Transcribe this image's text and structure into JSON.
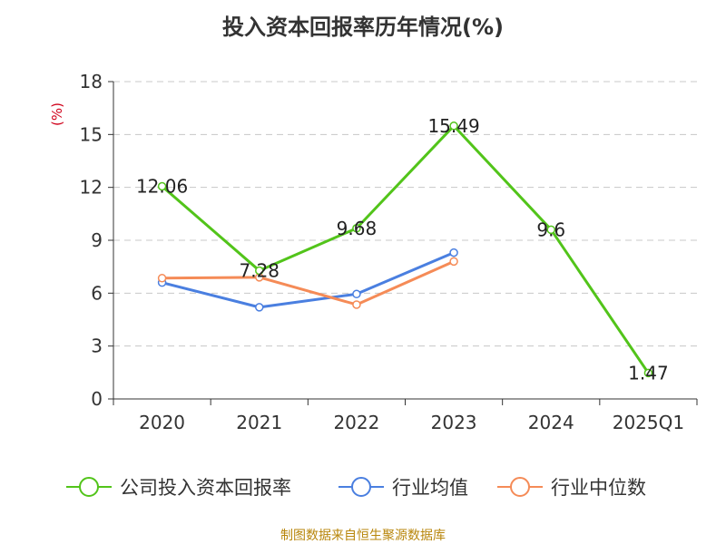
{
  "title": "投入资本回报率历年情况(%)",
  "source": "制图数据来自恒生聚源数据库",
  "chart_data": {
    "type": "line",
    "title": "投入资本回报率历年情况(%)",
    "unit_label": "(%)",
    "categories": [
      "2020",
      "2021",
      "2022",
      "2023",
      "2024",
      "2025Q1"
    ],
    "yticks": [
      "0",
      "3",
      "6",
      "9",
      "12",
      "15",
      "18"
    ],
    "ylim": [
      0,
      18
    ],
    "grid": true,
    "legend_position": "bottom",
    "series": [
      {
        "name": "公司投入资本回报率",
        "color": "#52c41a",
        "values": [
          12.06,
          7.28,
          9.68,
          15.49,
          9.6,
          1.47
        ],
        "labels": [
          "12.06",
          "7.28",
          "9.68",
          "15.49",
          "9.6",
          "1.47"
        ]
      },
      {
        "name": "行业均值",
        "color": "#4a7fe0",
        "values": [
          6.6,
          5.2,
          5.95,
          8.3,
          null,
          null
        ]
      },
      {
        "name": "行业中位数",
        "color": "#f58b57",
        "values": [
          6.85,
          6.9,
          5.35,
          7.8,
          null,
          null
        ]
      }
    ]
  }
}
